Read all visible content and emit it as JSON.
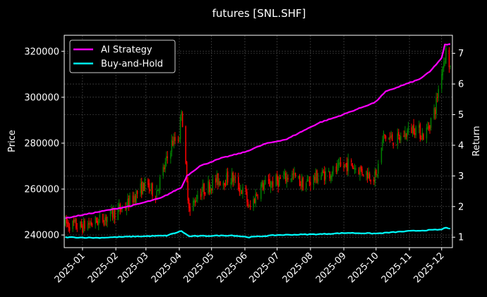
{
  "chart_data": {
    "type": "candlestick+line",
    "title": "futures [SNL.SHF]",
    "ylabel_left": "Price",
    "ylabel_right": "Return",
    "xlabel": "",
    "ylim_left": [
      234500,
      327000
    ],
    "ylim_right": [
      0.66,
      7.59
    ],
    "xlim": [
      "2024-12-15",
      "2025-12-11"
    ],
    "grid": true,
    "legend_position": "top-left",
    "x_ticks": [
      "2025-01",
      "2025-02",
      "2025-03",
      "2025-04",
      "2025-05",
      "2025-06",
      "2025-07",
      "2025-08",
      "2025-09",
      "2025-10",
      "2025-11",
      "2025-12"
    ],
    "y_ticks_left": [
      240000,
      260000,
      280000,
      300000,
      320000
    ],
    "y_ticks_right": [
      1,
      2,
      3,
      4,
      5,
      6,
      7
    ],
    "candles": {
      "start_date": "2024-12-16",
      "end_date": "2025-12-09",
      "anchors": [
        [
          "2024-12-16",
          245000
        ],
        [
          "2024-12-31",
          243500
        ],
        [
          "2025-01-20",
          247000
        ],
        [
          "2025-02-10",
          252500
        ],
        [
          "2025-02-28",
          262000
        ],
        [
          "2025-03-10",
          258000
        ],
        [
          "2025-03-20",
          272000
        ],
        [
          "2025-03-25",
          280000
        ],
        [
          "2025-04-01",
          283000
        ],
        [
          "2025-04-03",
          296000
        ],
        [
          "2025-04-08",
          262000
        ],
        [
          "2025-04-11",
          250000
        ],
        [
          "2025-04-18",
          258000
        ],
        [
          "2025-05-05",
          263500
        ],
        [
          "2025-05-20",
          265000
        ],
        [
          "2025-06-02",
          257000
        ],
        [
          "2025-06-05",
          251000
        ],
        [
          "2025-06-15",
          261000
        ],
        [
          "2025-07-01",
          263500
        ],
        [
          "2025-07-15",
          266000
        ],
        [
          "2025-07-25",
          262000
        ],
        [
          "2025-08-10",
          266000
        ],
        [
          "2025-08-25",
          268000
        ],
        [
          "2025-09-05",
          271000
        ],
        [
          "2025-09-20",
          267500
        ],
        [
          "2025-10-01",
          265000
        ],
        [
          "2025-10-08",
          283000
        ],
        [
          "2025-10-20",
          281000
        ],
        [
          "2025-11-05",
          287000
        ],
        [
          "2025-11-15",
          283000
        ],
        [
          "2025-11-25",
          295000
        ],
        [
          "2025-12-01",
          312000
        ],
        [
          "2025-12-05",
          320000
        ],
        [
          "2025-12-09",
          313000
        ]
      ],
      "up_color": "#008000",
      "down_color": "#ff0000"
    },
    "series": [
      {
        "name": "AI Strategy",
        "axis": "right",
        "color": "#ff00ff",
        "points": [
          [
            "2024-12-16",
            1.62
          ],
          [
            "2025-01-15",
            1.82
          ],
          [
            "2025-02-15",
            2.02
          ],
          [
            "2025-03-15",
            2.28
          ],
          [
            "2025-03-28",
            2.52
          ],
          [
            "2025-04-03",
            2.62
          ],
          [
            "2025-04-08",
            3.0
          ],
          [
            "2025-04-20",
            3.32
          ],
          [
            "2025-05-10",
            3.58
          ],
          [
            "2025-06-01",
            3.78
          ],
          [
            "2025-06-20",
            4.05
          ],
          [
            "2025-07-10",
            4.2
          ],
          [
            "2025-07-20",
            4.38
          ],
          [
            "2025-08-10",
            4.75
          ],
          [
            "2025-08-25",
            4.92
          ],
          [
            "2025-09-15",
            5.2
          ],
          [
            "2025-09-30",
            5.4
          ],
          [
            "2025-10-10",
            5.75
          ],
          [
            "2025-10-25",
            5.95
          ],
          [
            "2025-11-10",
            6.15
          ],
          [
            "2025-11-20",
            6.4
          ],
          [
            "2025-12-01",
            6.85
          ],
          [
            "2025-12-04",
            7.28
          ],
          [
            "2025-12-09",
            7.3
          ]
        ]
      },
      {
        "name": "Buy-and-Hold",
        "axis": "right",
        "color": "#00ffff",
        "points": [
          [
            "2024-12-16",
            1.0
          ],
          [
            "2025-01-15",
            0.98
          ],
          [
            "2025-02-15",
            1.02
          ],
          [
            "2025-03-20",
            1.05
          ],
          [
            "2025-04-03",
            1.2
          ],
          [
            "2025-04-10",
            1.03
          ],
          [
            "2025-05-20",
            1.06
          ],
          [
            "2025-06-05",
            1.0
          ],
          [
            "2025-07-01",
            1.07
          ],
          [
            "2025-08-10",
            1.1
          ],
          [
            "2025-09-05",
            1.14
          ],
          [
            "2025-10-01",
            1.12
          ],
          [
            "2025-11-01",
            1.2
          ],
          [
            "2025-12-01",
            1.25
          ],
          [
            "2025-12-05",
            1.32
          ],
          [
            "2025-12-09",
            1.28
          ]
        ]
      }
    ]
  }
}
